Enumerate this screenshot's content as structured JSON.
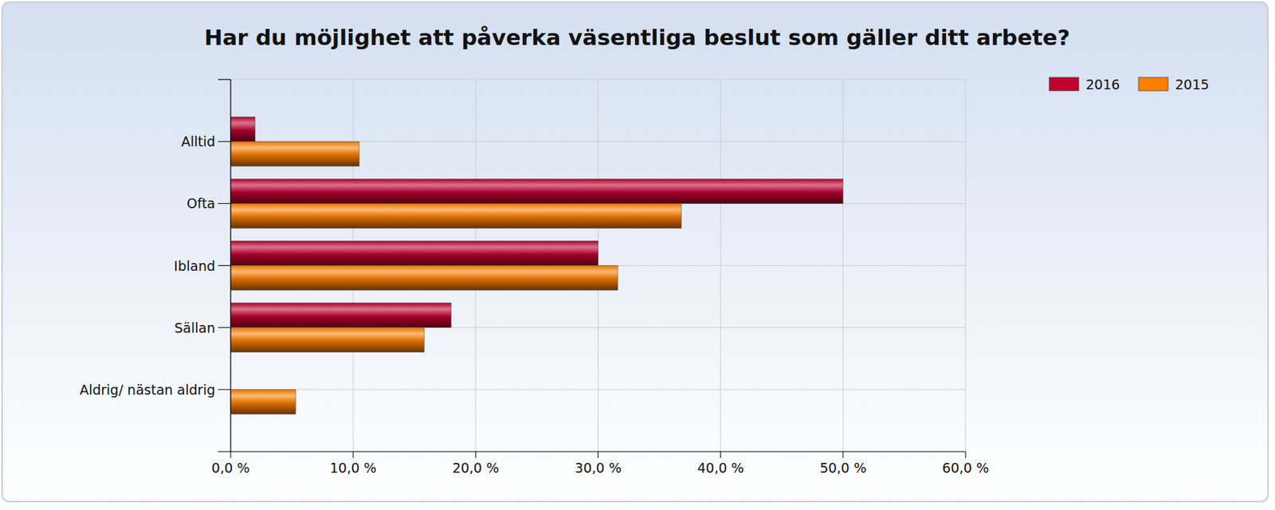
{
  "chart_data": {
    "type": "bar",
    "orientation": "horizontal",
    "title": "Har du möjlighet att påverka väsentliga beslut som gäller ditt arbete?",
    "categories": [
      "Alltid",
      "Ofta",
      "Ibland",
      "Sällan",
      "Aldrig/ nästan aldrig"
    ],
    "series": [
      {
        "name": "2016",
        "color": "#c0002f",
        "values": [
          2.0,
          50.0,
          30.0,
          18.0,
          0
        ]
      },
      {
        "name": "2015",
        "color": "#ff8000",
        "values": [
          10.5,
          36.8,
          31.6,
          15.8,
          5.3
        ]
      }
    ],
    "xlim": [
      0,
      60
    ],
    "xticks": [
      {
        "value": 0,
        "label": "0,0 %"
      },
      {
        "value": 10,
        "label": "10,0 %"
      },
      {
        "value": 20,
        "label": "20,0 %"
      },
      {
        "value": 30,
        "label": "30,0 %"
      },
      {
        "value": 40,
        "label": "40,0 %"
      },
      {
        "value": 50,
        "label": "50,0 %"
      },
      {
        "value": 60,
        "label": "60,0 %"
      }
    ],
    "grid": true,
    "legend": "top-right"
  }
}
